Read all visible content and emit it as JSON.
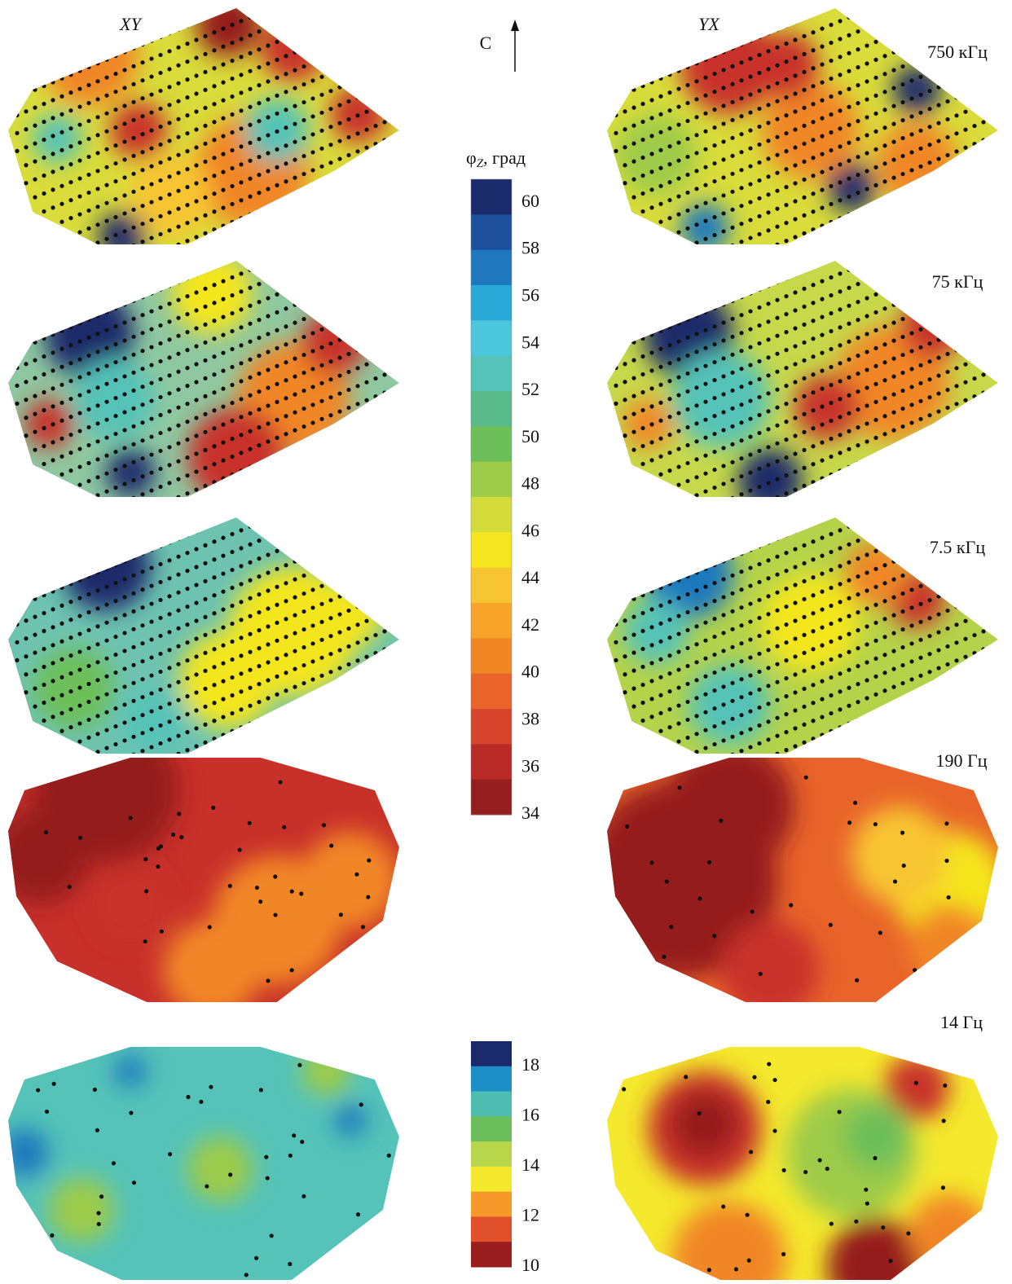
{
  "columns": [
    "XY",
    "YX"
  ],
  "north": "С",
  "frequencies": [
    "750 кГц",
    "75 кГц",
    "7.5 кГц",
    "190 Гц",
    "14 Гц"
  ],
  "colorbar_main": {
    "title_symbol": "φ",
    "title_subscript": "Z",
    "title_unit": ", град",
    "ticks": [
      60,
      58,
      56,
      54,
      52,
      50,
      48,
      46,
      44,
      42,
      40,
      38,
      36,
      34
    ]
  },
  "colorbar_low": {
    "ticks": [
      18,
      16,
      14,
      12,
      10
    ]
  }
}
